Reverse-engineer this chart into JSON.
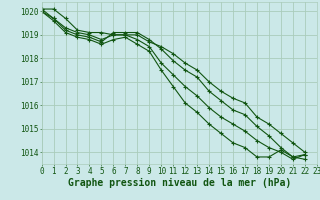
{
  "background_color": "#cbe8e8",
  "grid_color": "#aaccbb",
  "line_color": "#115511",
  "marker_color": "#115511",
  "title": "Graphe pression niveau de la mer (hPa)",
  "xlim": [
    0,
    23
  ],
  "ylim": [
    1013.5,
    1020.4
  ],
  "yticks": [
    1014,
    1015,
    1016,
    1017,
    1018,
    1019,
    1020
  ],
  "xticks": [
    0,
    1,
    2,
    3,
    4,
    5,
    6,
    7,
    8,
    9,
    10,
    11,
    12,
    13,
    14,
    15,
    16,
    17,
    18,
    19,
    20,
    21,
    22,
    23
  ],
  "series": [
    [
      1020.1,
      1020.1,
      1019.7,
      1019.2,
      1019.1,
      1019.1,
      1019.0,
      1019.0,
      1019.0,
      1018.7,
      1018.5,
      1018.2,
      1017.8,
      1017.5,
      1017.0,
      1016.6,
      1016.3,
      1016.1,
      1015.5,
      1015.2,
      1014.8,
      1014.4,
      1014.0,
      null
    ],
    [
      1020.1,
      1019.7,
      1019.3,
      1019.1,
      1019.0,
      1018.8,
      1019.0,
      1019.0,
      1018.8,
      1018.5,
      1017.8,
      1017.3,
      1016.8,
      1016.4,
      1015.9,
      1015.5,
      1015.2,
      1014.9,
      1014.5,
      1014.2,
      1014.0,
      1013.7,
      1013.9,
      null
    ],
    [
      1020.0,
      1019.6,
      1019.1,
      1018.9,
      1018.8,
      1018.6,
      1018.8,
      1018.9,
      1018.6,
      1018.3,
      1017.5,
      1016.8,
      1016.1,
      1015.7,
      1015.2,
      1014.8,
      1014.4,
      1014.2,
      1013.8,
      1013.8,
      1014.1,
      1013.8,
      1013.9,
      null
    ],
    [
      1020.0,
      1019.7,
      1019.2,
      1019.0,
      1018.9,
      1018.7,
      1019.1,
      1019.1,
      1019.1,
      1018.8,
      1018.4,
      1017.9,
      1017.5,
      1017.2,
      1016.6,
      1016.2,
      1015.8,
      1015.6,
      1015.1,
      1014.7,
      1014.2,
      1013.8,
      1013.7,
      null
    ]
  ],
  "title_color": "#115511",
  "title_fontsize": 7.0,
  "tick_fontsize": 5.5,
  "linewidth": 0.8,
  "markersize": 3.0
}
